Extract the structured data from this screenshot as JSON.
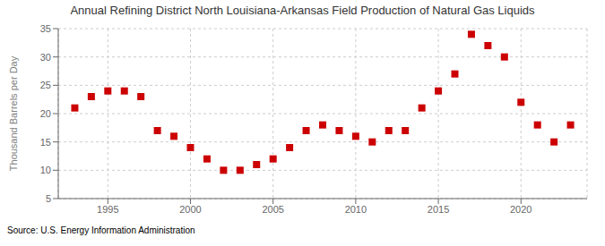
{
  "chart_data": {
    "type": "scatter",
    "title": "Annual Refining District North Louisiana-Arkansas Field Production of Natural Gas Liquids",
    "ylabel": "Thousand Barrels per Day",
    "annotations": [
      "Source: U.S. Energy Information Administration"
    ],
    "x": [
      1993,
      1994,
      1995,
      1996,
      1997,
      1998,
      1999,
      2000,
      2001,
      2002,
      2003,
      2004,
      2005,
      2006,
      2007,
      2008,
      2009,
      2010,
      2011,
      2012,
      2013,
      2014,
      2015,
      2016,
      2017,
      2018,
      2019,
      2020,
      2021,
      2022,
      2023
    ],
    "values": [
      21,
      23,
      24,
      24,
      23,
      17,
      16,
      14,
      12,
      10,
      10,
      11,
      12,
      14,
      17,
      18,
      17,
      16,
      15,
      17,
      17,
      21,
      24,
      27,
      34,
      32,
      30,
      22,
      18,
      15,
      18
    ],
    "color": "#cc0000",
    "marker": "square",
    "xlim": [
      1992,
      2024
    ],
    "xticks": [
      1995,
      2000,
      2005,
      2010,
      2015,
      2020
    ],
    "ylim": [
      5,
      35
    ],
    "yticks": [
      5,
      10,
      15,
      20,
      25,
      30,
      35
    ],
    "grid": true
  }
}
